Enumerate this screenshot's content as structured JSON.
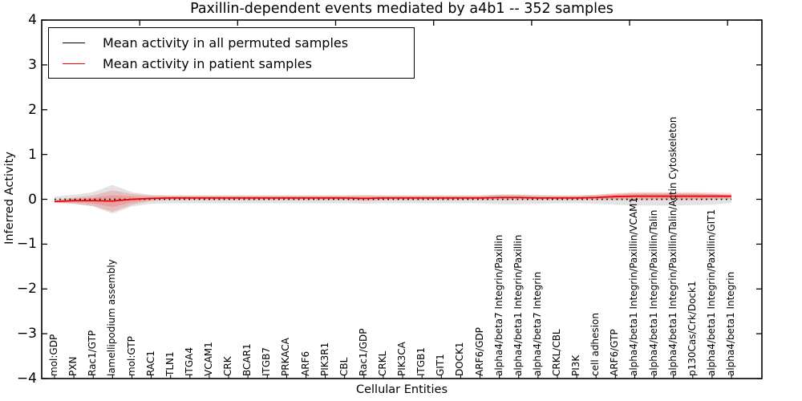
{
  "title": "Paxillin-dependent events mediated by a4b1 -- 352 samples",
  "axes": {
    "xlabel": "Cellular Entities",
    "ylabel": "Inferred Activity",
    "yticks": [
      "4",
      "3",
      "2",
      "1",
      "0",
      "−1",
      "−2",
      "−3",
      "−4"
    ]
  },
  "legend": {
    "items": [
      {
        "label": "Mean activity in all permuted samples",
        "color": "#000000"
      },
      {
        "label": "Mean activity in patient samples",
        "color": "#ff0000"
      }
    ]
  },
  "chart_data": {
    "type": "line",
    "title": "Paxillin-dependent events mediated by a4b1 -- 352 samples",
    "xlabel": "Cellular Entities",
    "ylabel": "Inferred Activity",
    "ylim": [
      -4,
      4
    ],
    "grid": false,
    "legend_position": "upper left",
    "categories": [
      "mol:GDP",
      "PXN",
      "Rac1/GTP",
      "lamellipodium assembly",
      "mol:GTP",
      "RAC1",
      "TLN1",
      "ITGA4",
      "VCAM1",
      "CRK",
      "BCAR1",
      "ITGB7",
      "PRKACA",
      "ARF6",
      "PIK3R1",
      "CBL",
      "Rac1/GDP",
      "CRKL",
      "PIK3CA",
      "ITGB1",
      "GIT1",
      "DOCK1",
      "ARF6/GDP",
      "alpha4/beta7 Integrin/Paxillin",
      "alpha4/beta1 Integrin/Paxillin",
      "alpha4/beta7 Integrin",
      "CRKL/CBL",
      "PI3K",
      "cell adhesion",
      "ARF6/GTP",
      "alpha4/beta1 Integrin/Paxillin/VCAM1",
      "alpha4/beta1 Integrin/Paxillin/Talin",
      "alpha4/beta1 Integrin/Paxillin/Talin/Actin Cytoskeleton",
      "p130Cas/Crk/Dock1",
      "alpha4/beta1 Integrin/Paxillin/GIT1",
      "alpha4/beta1 Integrin"
    ],
    "series": [
      {
        "name": "Mean activity in all permuted samples",
        "color": "#000000",
        "linestyle": "dotted",
        "values": [
          0,
          0,
          0,
          0,
          0,
          0,
          0,
          0,
          0,
          0,
          0,
          0,
          0,
          0,
          0,
          0,
          0,
          0,
          0,
          0,
          0,
          0,
          0,
          0,
          0,
          0,
          0,
          0,
          0,
          0,
          0,
          0,
          0,
          0,
          0,
          0
        ],
        "band_color": "rgba(128,128,128,0.22)",
        "band_half_width": [
          0.06,
          0.1,
          0.16,
          0.32,
          0.16,
          0.1,
          0.09,
          0.09,
          0.09,
          0.09,
          0.09,
          0.09,
          0.09,
          0.09,
          0.09,
          0.09,
          0.1,
          0.09,
          0.09,
          0.09,
          0.09,
          0.09,
          0.09,
          0.11,
          0.11,
          0.1,
          0.09,
          0.09,
          0.1,
          0.12,
          0.14,
          0.14,
          0.14,
          0.13,
          0.12,
          0.08
        ]
      },
      {
        "name": "Mean activity in patient samples",
        "color": "#e60000",
        "linestyle": "solid",
        "values": [
          -0.05,
          -0.03,
          -0.03,
          -0.04,
          0.0,
          0.02,
          0.03,
          0.03,
          0.03,
          0.03,
          0.03,
          0.03,
          0.03,
          0.03,
          0.03,
          0.03,
          0.02,
          0.03,
          0.03,
          0.03,
          0.03,
          0.03,
          0.03,
          0.04,
          0.04,
          0.03,
          0.03,
          0.03,
          0.04,
          0.06,
          0.07,
          0.07,
          0.07,
          0.07,
          0.07,
          0.07
        ],
        "band_color": "rgba(255,0,0,0.16)",
        "band_half_width": [
          0.04,
          0.07,
          0.12,
          0.24,
          0.12,
          0.06,
          0.05,
          0.05,
          0.05,
          0.05,
          0.05,
          0.05,
          0.05,
          0.05,
          0.05,
          0.05,
          0.06,
          0.05,
          0.05,
          0.05,
          0.05,
          0.05,
          0.05,
          0.06,
          0.06,
          0.05,
          0.05,
          0.05,
          0.06,
          0.08,
          0.09,
          0.09,
          0.09,
          0.09,
          0.08,
          0.07
        ]
      }
    ]
  }
}
